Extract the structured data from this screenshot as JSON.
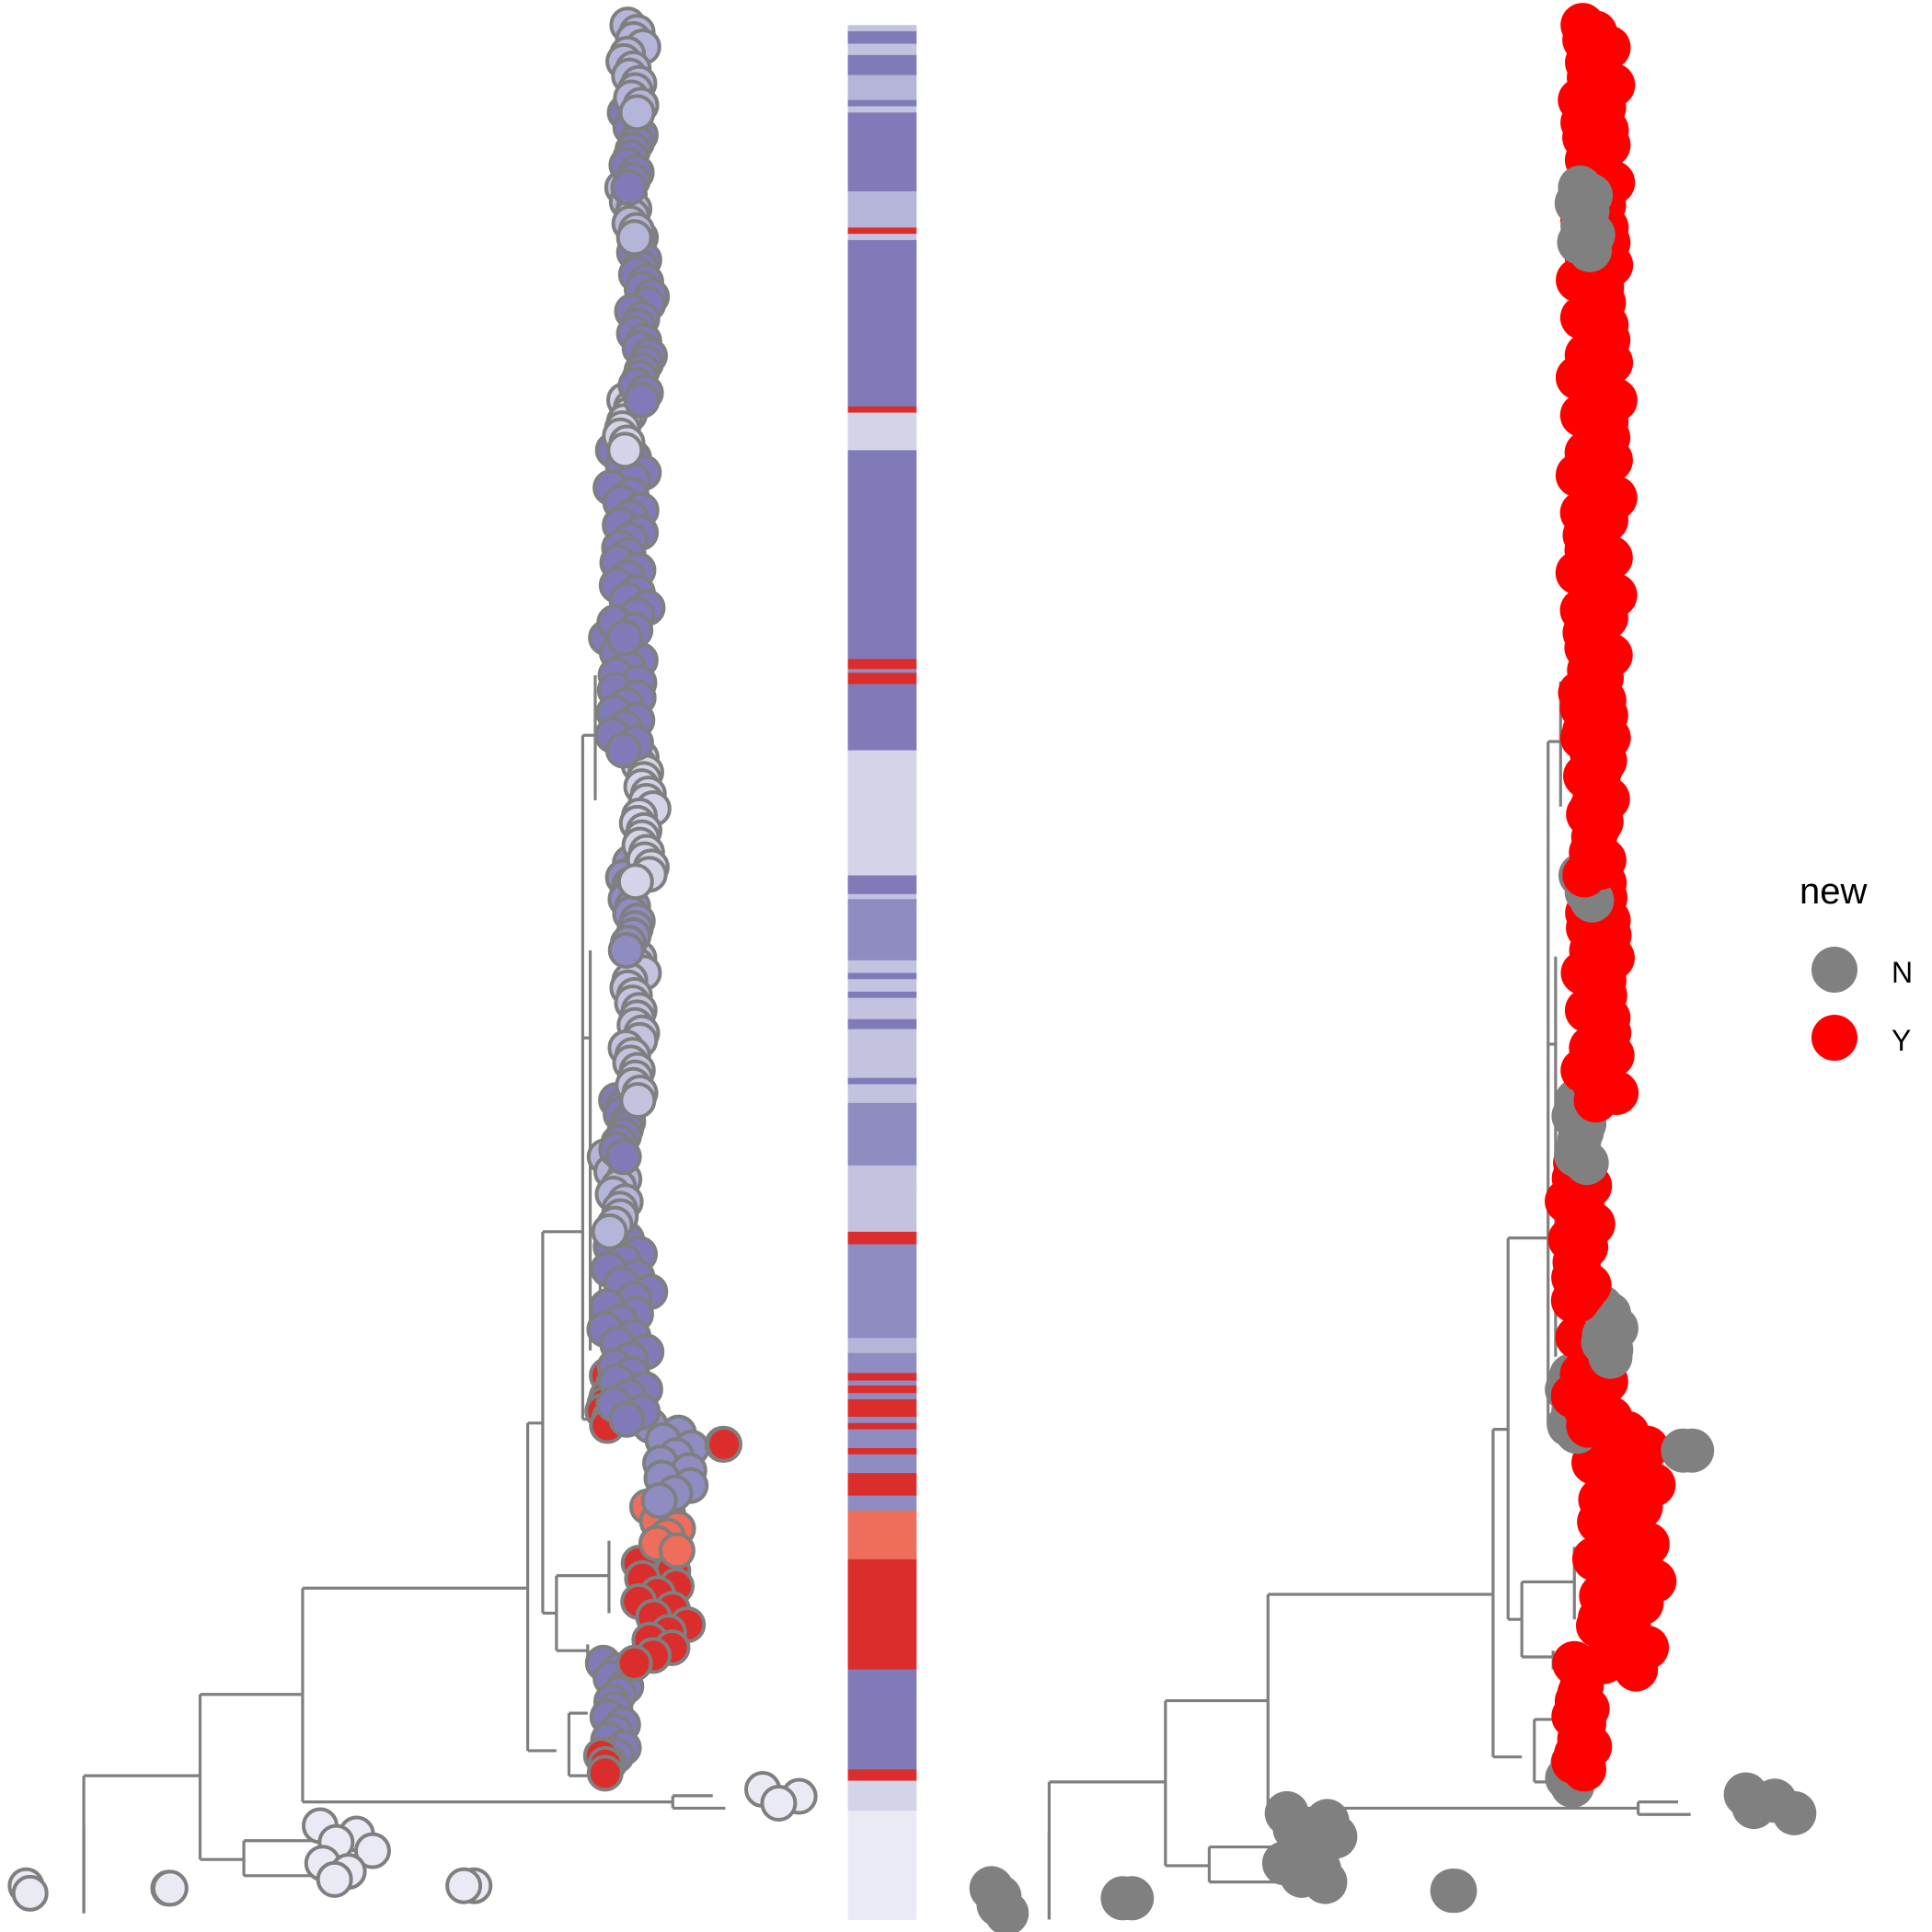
{
  "chart_data": [
    {
      "type": "scatter",
      "panel": "left-tree-tips-by-group",
      "branch_color": "#7f7f7f",
      "tip_outline": "#7f7f7f",
      "palette": {
        "g1": "#eaeaf5",
        "g2": "#d4d4e8",
        "g3": "#c3c3e0",
        "g4": "#b5b5d9",
        "g5": "#8f8cc1",
        "g6": "#807bb8",
        "g7": "#db2d2b",
        "g8": "#ef6d5b"
      },
      "clusters": [
        {
          "group": "g1",
          "y": [
            1508,
            1514
          ],
          "x": [
            10,
            11
          ]
        },
        {
          "group": "g1",
          "y": [
            1510,
            1510
          ],
          "x": [
            42,
            42
          ]
        },
        {
          "group": "g1",
          "y": [
            1460,
            1480
          ],
          "x": [
            76,
            89
          ]
        },
        {
          "group": "g1",
          "y": [
            1490,
            1503
          ],
          "x": [
            76,
            85
          ]
        },
        {
          "group": "g1",
          "y": [
            1508,
            1508
          ],
          "x": [
            110,
            110
          ]
        },
        {
          "group": "g1",
          "y": [
            1431,
            1442
          ],
          "x": [
            178,
            191
          ]
        },
        {
          "group": "g6",
          "y": [
            1330,
            1410
          ],
          "x": [
            141,
            146
          ]
        },
        {
          "group": "g7",
          "y": [
            1404,
            1418
          ],
          "x": [
            140,
            141
          ]
        },
        {
          "group": "g7",
          "y": [
            1250,
            1330
          ],
          "x": [
            148,
            160
          ]
        },
        {
          "group": "g8",
          "y": [
            1205,
            1240
          ],
          "x": [
            152,
            159
          ]
        },
        {
          "group": "g5",
          "y": [
            1140,
            1200
          ],
          "x": [
            152,
            162
          ]
        },
        {
          "group": "g7",
          "y": [
            1155,
            1155
          ],
          "x": [
            168,
            168
          ]
        },
        {
          "group": "g7",
          "y": [
            1100,
            1140
          ],
          "x": [
            141,
            143
          ]
        },
        {
          "group": "g6",
          "y": [
            985,
            1135
          ],
          "x": [
            141,
            151
          ]
        },
        {
          "group": "g4",
          "y": [
            925,
            985
          ],
          "x": [
            142,
            146
          ]
        },
        {
          "group": "g6",
          "y": [
            880,
            925
          ],
          "x": [
            144,
            146
          ]
        },
        {
          "group": "g3",
          "y": [
            760,
            880
          ],
          "x": [
            147,
            149
          ]
        },
        {
          "group": "g5",
          "y": [
            690,
            760
          ],
          "x": [
            146,
            148
          ]
        },
        {
          "group": "g2",
          "y": [
            600,
            705
          ],
          "x": [
            149,
            151
          ]
        },
        {
          "group": "g6",
          "y": [
            510,
            600
          ],
          "x": [
            142,
            150
          ]
        },
        {
          "group": "g6",
          "y": [
            360,
            510
          ],
          "x": [
            143,
            150
          ]
        },
        {
          "group": "g2",
          "y": [
            320,
            360
          ],
          "x": [
            145,
            147
          ]
        },
        {
          "group": "g6",
          "y": [
            190,
            320
          ],
          "x": [
            148,
            151
          ]
        },
        {
          "group": "g4",
          "y": [
            150,
            190
          ],
          "x": [
            146,
            148
          ]
        },
        {
          "group": "g6",
          "y": [
            90,
            150
          ],
          "x": [
            146,
            149
          ]
        },
        {
          "group": "g4",
          "y": [
            20,
            90
          ],
          "x": [
            146,
            149
          ]
        }
      ]
    },
    {
      "type": "heatmap",
      "panel": "middle-strip",
      "y_range": [
        20,
        1535
      ],
      "bands": [
        {
          "y": [
            20,
            25
          ],
          "group": "g3"
        },
        {
          "y": [
            25,
            35
          ],
          "group": "g6"
        },
        {
          "y": [
            35,
            44
          ],
          "group": "g3"
        },
        {
          "y": [
            44,
            60
          ],
          "group": "g6"
        },
        {
          "y": [
            60,
            80
          ],
          "group": "g4"
        },
        {
          "y": [
            80,
            85
          ],
          "group": "g6"
        },
        {
          "y": [
            85,
            90
          ],
          "group": "g3"
        },
        {
          "y": [
            90,
            153
          ],
          "group": "g6"
        },
        {
          "y": [
            153,
            182
          ],
          "group": "g4"
        },
        {
          "y": [
            182,
            187
          ],
          "group": "g7"
        },
        {
          "y": [
            187,
            192
          ],
          "group": "g3"
        },
        {
          "y": [
            192,
            325
          ],
          "group": "g6"
        },
        {
          "y": [
            325,
            330
          ],
          "group": "g7"
        },
        {
          "y": [
            330,
            360
          ],
          "group": "g2"
        },
        {
          "y": [
            360,
            527
          ],
          "group": "g6"
        },
        {
          "y": [
            527,
            535
          ],
          "group": "g7"
        },
        {
          "y": [
            535,
            538
          ],
          "group": "g5"
        },
        {
          "y": [
            538,
            547
          ],
          "group": "g7"
        },
        {
          "y": [
            547,
            600
          ],
          "group": "g6"
        },
        {
          "y": [
            600,
            700
          ],
          "group": "g2"
        },
        {
          "y": [
            700,
            715
          ],
          "group": "g6"
        },
        {
          "y": [
            715,
            719
          ],
          "group": "g3"
        },
        {
          "y": [
            719,
            768
          ],
          "group": "g5"
        },
        {
          "y": [
            768,
            778
          ],
          "group": "g3"
        },
        {
          "y": [
            778,
            783
          ],
          "group": "g6"
        },
        {
          "y": [
            783,
            793
          ],
          "group": "g3"
        },
        {
          "y": [
            793,
            798
          ],
          "group": "g6"
        },
        {
          "y": [
            798,
            815
          ],
          "group": "g3"
        },
        {
          "y": [
            815,
            823
          ],
          "group": "g6"
        },
        {
          "y": [
            823,
            862
          ],
          "group": "g3"
        },
        {
          "y": [
            862,
            867
          ],
          "group": "g6"
        },
        {
          "y": [
            867,
            882
          ],
          "group": "g3"
        },
        {
          "y": [
            882,
            932
          ],
          "group": "g5"
        },
        {
          "y": [
            932,
            950
          ],
          "group": "g3"
        },
        {
          "y": [
            950,
            985
          ],
          "group": "g3"
        },
        {
          "y": [
            985,
            995
          ],
          "group": "g7"
        },
        {
          "y": [
            995,
            1070
          ],
          "group": "g5"
        },
        {
          "y": [
            1070,
            1082
          ],
          "group": "g4"
        },
        {
          "y": [
            1082,
            1098
          ],
          "group": "g5"
        },
        {
          "y": [
            1098,
            1104
          ],
          "group": "g7"
        },
        {
          "y": [
            1104,
            1108
          ],
          "group": "g5"
        },
        {
          "y": [
            1108,
            1114
          ],
          "group": "g7"
        },
        {
          "y": [
            1114,
            1119
          ],
          "group": "g5"
        },
        {
          "y": [
            1119,
            1133
          ],
          "group": "g7"
        },
        {
          "y": [
            1133,
            1138
          ],
          "group": "g5"
        },
        {
          "y": [
            1138,
            1143
          ],
          "group": "g7"
        },
        {
          "y": [
            1143,
            1158
          ],
          "group": "g5"
        },
        {
          "y": [
            1158,
            1163
          ],
          "group": "g7"
        },
        {
          "y": [
            1163,
            1178
          ],
          "group": "g5"
        },
        {
          "y": [
            1178,
            1196
          ],
          "group": "g7"
        },
        {
          "y": [
            1196,
            1208
          ],
          "group": "g5"
        },
        {
          "y": [
            1208,
            1247
          ],
          "group": "g8"
        },
        {
          "y": [
            1247,
            1335
          ],
          "group": "g7"
        },
        {
          "y": [
            1335,
            1415
          ],
          "group": "g6"
        },
        {
          "y": [
            1415,
            1424
          ],
          "group": "g7"
        },
        {
          "y": [
            1424,
            1448
          ],
          "group": "g2"
        },
        {
          "y": [
            1448,
            1535
          ],
          "group": "g1"
        }
      ]
    },
    {
      "type": "scatter",
      "panel": "right-tree-tips-by-new",
      "legend": {
        "title": "new",
        "entries": [
          {
            "label": "N",
            "color": "#808080"
          },
          {
            "label": "Y",
            "color": "#ff0000"
          }
        ]
      },
      "clusters": [
        {
          "status": "N",
          "y": [
            1510,
            1530
          ],
          "x": [
            10,
            12
          ]
        },
        {
          "status": "N",
          "y": [
            1518,
            1518
          ],
          "x": [
            40,
            40
          ]
        },
        {
          "status": "N",
          "y": [
            1450,
            1475
          ],
          "x": [
            76,
            90
          ]
        },
        {
          "status": "N",
          "y": [
            1490,
            1505
          ],
          "x": [
            76,
            88
          ]
        },
        {
          "status": "N",
          "y": [
            1512,
            1512
          ],
          "x": [
            115,
            115
          ]
        },
        {
          "status": "N",
          "y": [
            1435,
            1450
          ],
          "x": [
            180,
            194
          ]
        },
        {
          "status": "N",
          "y": [
            1410,
            1428
          ],
          "x": [
            141,
            142
          ]
        },
        {
          "status": "Y",
          "y": [
            1330,
            1415
          ],
          "x": [
            142,
            145
          ]
        },
        {
          "status": "Y",
          "y": [
            1300,
            1335
          ],
          "x": [
            148,
            159
          ]
        },
        {
          "status": "Y",
          "y": [
            1140,
            1300
          ],
          "x": [
            146,
            160
          ]
        },
        {
          "status": "N",
          "y": [
            1160,
            1160
          ],
          "x": [
            168,
            168
          ]
        },
        {
          "status": "N",
          "y": [
            1100,
            1145
          ],
          "x": [
            141,
            143
          ]
        },
        {
          "status": "Y",
          "y": [
            1040,
            1140
          ],
          "x": [
            142,
            150
          ]
        },
        {
          "status": "N",
          "y": [
            1045,
            1085
          ],
          "x": [
            149,
            151
          ]
        },
        {
          "status": "Y",
          "y": [
            930,
            1040
          ],
          "x": [
            141,
            146
          ]
        },
        {
          "status": "N",
          "y": [
            880,
            930
          ],
          "x": [
            142,
            145
          ]
        },
        {
          "status": "Y",
          "y": [
            700,
            880
          ],
          "x": [
            144,
            151
          ]
        },
        {
          "status": "N",
          "y": [
            700,
            720
          ],
          "x": [
            144,
            145
          ]
        },
        {
          "status": "Y",
          "y": [
            590,
            700
          ],
          "x": [
            145,
            149
          ]
        },
        {
          "status": "Y",
          "y": [
            20,
            590
          ],
          "x": [
            143,
            151
          ]
        },
        {
          "status": "N",
          "y": [
            150,
            200
          ],
          "x": [
            143,
            146
          ]
        }
      ]
    }
  ]
}
